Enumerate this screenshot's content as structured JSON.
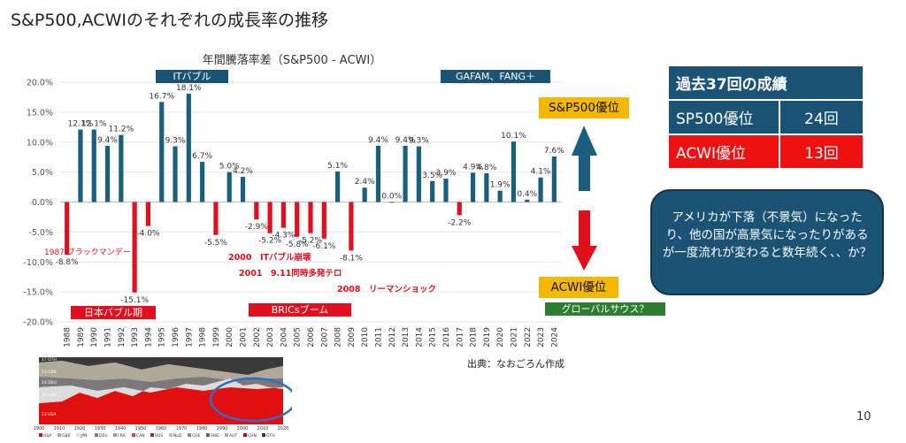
{
  "slide": {
    "title": "S&P500,ACWIのそれぞれの成長率の推移",
    "source": "出典：なおごろん作成",
    "page_number": "10"
  },
  "colors": {
    "positive_bar": "#1b5e7e",
    "negative_bar": "#e0101e",
    "dark_blue": "#1a5373",
    "red": "#ee1111",
    "gold": "#f5b800",
    "green": "#2e7d32"
  },
  "chart_data": {
    "type": "bar",
    "title": "年間騰落率差（S&P500 - ACWI）",
    "xlabel": "",
    "ylabel": "",
    "ylim": [
      -20,
      20
    ],
    "y_ticks": [
      "20.0%",
      "15.0%",
      "10.0%",
      "5.0%",
      "0.0%",
      "-5.0%",
      "-10.0%",
      "-15.0%",
      "-20.0%"
    ],
    "categories": [
      "1988",
      "1989",
      "1990",
      "1991",
      "1992",
      "1993",
      "1994",
      "1995",
      "1996",
      "1997",
      "1998",
      "1999",
      "2000",
      "2001",
      "2002",
      "2003",
      "2004",
      "2005",
      "2006",
      "2007",
      "2008",
      "2009",
      "2010",
      "2011",
      "2012",
      "2013",
      "2014",
      "2015",
      "2016",
      "2017",
      "2018",
      "2019",
      "2020",
      "2021",
      "2022",
      "2023",
      "2024"
    ],
    "values": [
      -8.8,
      12.1,
      12.1,
      9.4,
      11.2,
      -15.1,
      -4.0,
      16.7,
      9.3,
      18.1,
      6.7,
      -5.5,
      5.0,
      4.2,
      -2.9,
      -5.2,
      -4.3,
      -5.8,
      -5.2,
      -6.1,
      5.1,
      -8.1,
      2.4,
      9.4,
      0.0,
      9.4,
      9.3,
      3.5,
      3.9,
      -2.2,
      4.9,
      4.8,
      1.9,
      10.1,
      0.4,
      4.1,
      7.6
    ],
    "data_labels": [
      "-8.8%",
      "12.1%",
      "12.1%",
      "9.4%",
      "11.2%",
      "-15.1%",
      "-4.0%",
      "16.7%",
      "9.3%",
      "18.1%",
      "6.7%",
      "-5.5%",
      "5.0%",
      "4.2%",
      "-2.9%",
      "-5.2%",
      "-4.3%",
      "-5.8%",
      "-5.2%",
      "-6.1%",
      "5.1%",
      "-8.1%",
      "2.4%",
      "9.4%",
      "0.0%",
      "9.4%",
      "9.3%",
      "3.5%",
      "3.9%",
      "-2.2%",
      "4.9%",
      "4.8%",
      "1.9%",
      "10.1%",
      "0.4%",
      "4.1%",
      "7.6%"
    ],
    "grid": true,
    "annotations": [
      {
        "text": "1987 ブラックマンデー",
        "color": "#e0101e"
      },
      {
        "text": "2000　ITバブル崩壊",
        "color": "#e0101e"
      },
      {
        "text": "2001　9.11同時多発テロ",
        "color": "#e0101e"
      },
      {
        "text": "2008　リーマンショック",
        "color": "#e0101e"
      }
    ],
    "period_banners": [
      {
        "text": "ITバブル",
        "color": "#1a5373"
      },
      {
        "text": "GAFAM、FANG＋",
        "color": "#1a5373"
      },
      {
        "text": "日本バブル期",
        "color": "#e0101e"
      },
      {
        "text": "BRICsブーム",
        "color": "#e0101e"
      },
      {
        "text": "グローバルサウス？",
        "color": "#2e7d32"
      }
    ]
  },
  "labels": {
    "sp500_superior": "S&P500優位",
    "acwi_superior": "ACWI優位"
  },
  "results_table": {
    "header": "過去37回の成績",
    "rows": [
      {
        "label": "SP500優位",
        "value": "24回"
      },
      {
        "label": "ACWI優位",
        "value": "13回"
      }
    ]
  },
  "callout": {
    "text": "アメリカが下落（不景気）になったり、他の国が高景気になったりがあるが一度流れが変わると数年続く、、か？"
  },
  "inset_chart": {
    "type": "area",
    "x_ticks": [
      "1900",
      "1910",
      "1920",
      "1930",
      "1940",
      "1950",
      "1960",
      "1970",
      "1980",
      "1990",
      "2000",
      "2010",
      "2020"
    ],
    "legend": [
      "USA",
      "GBR",
      "JPN",
      "DEU",
      "FRA",
      "CAN",
      "RUS",
      "NLD",
      "CHE",
      "SWE",
      "AUT",
      "CHN",
      "OTH"
    ],
    "left_labels": [
      "17 OTH",
      "13 GBR",
      "14 DEU",
      "15 GBR",
      "13 USA"
    ]
  }
}
